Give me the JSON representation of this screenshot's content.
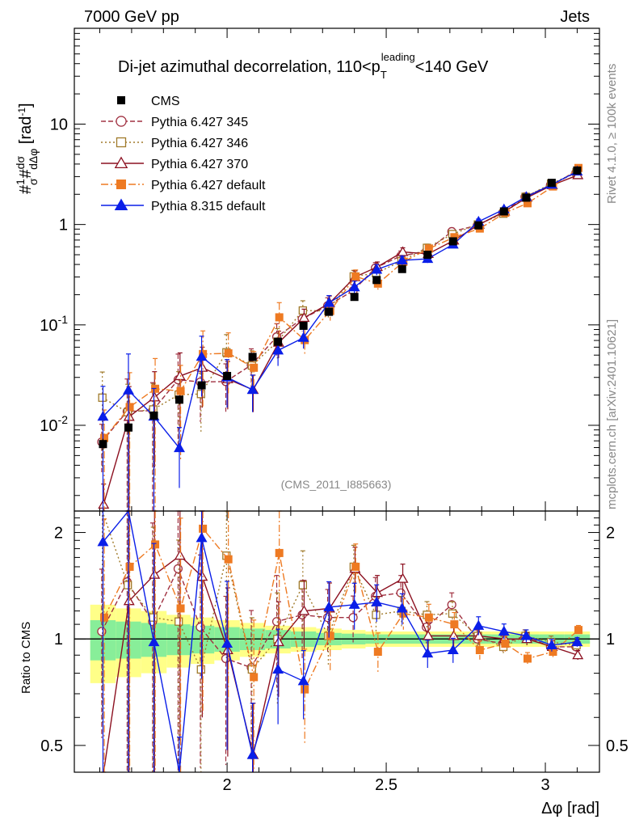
{
  "header": {
    "left": "7000 GeV pp",
    "right": "Jets"
  },
  "side_text": {
    "rivet": "Rivet 4.1.0, ≥ 100k events",
    "mcplots": "mcplots.cern.ch [arXiv:2401.10621]"
  },
  "chart_data": {
    "type": "scatter",
    "title": "Di-jet azimuthal decorrelation, 110<p_T^leading<140 GeV",
    "title_parts": {
      "main": "Di-jet azimuthal decorrelation, 110<p",
      "sup": "leading",
      "sub": "T",
      "end": "<140 GeV"
    },
    "analysis_id": "(CMS_2011_I885663)",
    "xlabel": "Δφ [rad]",
    "ylabel": "1/σ dσ/dΔφ [rad^-1]",
    "ratio_ylabel": "Ratio to CMS",
    "xlim": [
      1.52,
      3.17
    ],
    "ylim": [
      0.0014,
      90
    ],
    "yscale": "log",
    "ratio_ylim": [
      0.42,
      2.3
    ],
    "x_ticks": [
      "2",
      "2.5",
      "3"
    ],
    "y_ticks": [
      "10^-2",
      "10^-1",
      "1",
      "10"
    ],
    "ratio_ticks": [
      "0.5",
      "1",
      "2"
    ],
    "legend_position": "top-left",
    "x": [
      1.61,
      1.69,
      1.77,
      1.85,
      1.92,
      2.0,
      2.08,
      2.16,
      2.24,
      2.32,
      2.4,
      2.47,
      2.55,
      2.63,
      2.71,
      2.79,
      2.87,
      2.94,
      3.02,
      3.1
    ],
    "cms": {
      "name": "CMS",
      "values": [
        0.0065,
        0.0095,
        0.0125,
        0.018,
        0.025,
        0.031,
        0.048,
        0.068,
        0.098,
        0.135,
        0.19,
        0.28,
        0.36,
        0.5,
        0.68,
        0.98,
        1.35,
        1.85,
        2.6,
        3.45
      ],
      "band_outer": [
        0.25,
        0.22,
        0.2,
        0.17,
        0.15,
        0.13,
        0.11,
        0.09,
        0.08,
        0.07,
        0.06,
        0.05,
        0.05,
        0.05,
        0.05,
        0.05,
        0.05,
        0.05,
        0.05,
        0.05
      ],
      "band_inner": [
        0.13,
        0.12,
        0.11,
        0.1,
        0.09,
        0.08,
        0.07,
        0.06,
        0.05,
        0.04,
        0.035,
        0.03,
        0.03,
        0.03,
        0.03,
        0.03,
        0.03,
        0.03,
        0.03,
        0.03
      ]
    },
    "series": [
      {
        "name": "Pythia 6.427 345",
        "color": "#a03040",
        "marker": "circle-open",
        "dash": "6,3",
        "ratios": [
          1.05,
          1.45,
          1.12,
          1.58,
          1.08,
          0.88,
          0.83,
          1.12,
          1.17,
          1.15,
          1.15,
          1.32,
          1.35,
          1.08,
          1.25,
          1.0,
          0.97,
          1.02,
          0.95,
          0.95
        ],
        "errs": [
          0.5,
          1.1,
          0.9,
          0.8,
          0.6,
          0.5,
          0.45,
          0.35,
          0.25,
          0.2,
          0.15,
          0.13,
          0.12,
          0.1,
          0.08,
          0.06,
          0.05,
          0.04,
          0.04,
          0.03
        ]
      },
      {
        "name": "Pythia 6.427 346",
        "color": "#a07a2a",
        "marker": "square-open",
        "dash": "2,3",
        "ratios": [
          2.9,
          1.42,
          1.15,
          1.12,
          0.82,
          1.72,
          0.82,
          1.0,
          1.42,
          1.02,
          1.6,
          1.17,
          1.2,
          1.17,
          1.18,
          1.02,
          0.95,
          1.02,
          0.98,
          0.96
        ],
        "errs": [
          0.8,
          0.9,
          0.8,
          0.7,
          0.6,
          0.5,
          0.4,
          0.35,
          0.25,
          0.18,
          0.15,
          0.12,
          0.1,
          0.09,
          0.08,
          0.06,
          0.05,
          0.04,
          0.04,
          0.03
        ]
      },
      {
        "name": "Pythia 6.427 370",
        "color": "#8c1020",
        "marker": "triangle-open",
        "dash": "",
        "ratios": [
          0.25,
          1.28,
          1.52,
          1.72,
          1.5,
          0.93,
          0.47,
          0.98,
          1.2,
          1.22,
          1.58,
          1.35,
          1.48,
          1.02,
          1.02,
          1.02,
          1.0,
          1.0,
          0.95,
          0.9
        ],
        "errs": [
          0.6,
          1.0,
          0.8,
          0.7,
          0.6,
          0.5,
          0.4,
          0.3,
          0.22,
          0.18,
          0.15,
          0.12,
          0.1,
          0.09,
          0.08,
          0.06,
          0.05,
          0.04,
          0.04,
          0.03
        ]
      },
      {
        "name": "Pythia 6.427 default",
        "color": "#ee7a22",
        "marker": "square-filled",
        "dash": "9,3,2,3",
        "ratios": [
          1.15,
          1.6,
          1.85,
          1.22,
          2.05,
          1.68,
          0.78,
          1.75,
          0.72,
          1.02,
          1.6,
          0.92,
          1.18,
          1.15,
          1.1,
          0.93,
          0.97,
          0.88,
          0.92,
          1.06
        ],
        "errs": [
          0.9,
          1.2,
          1.0,
          0.8,
          0.7,
          0.6,
          0.45,
          0.4,
          0.3,
          0.2,
          0.16,
          0.13,
          0.1,
          0.09,
          0.08,
          0.06,
          0.05,
          0.04,
          0.04,
          0.03
        ]
      },
      {
        "name": "Pythia 8.315 default",
        "color": "#0a1ee8",
        "marker": "triangle-filled",
        "dash": "",
        "ratios": [
          1.88,
          2.35,
          0.98,
          0.33,
          1.93,
          0.97,
          0.47,
          0.82,
          0.76,
          1.23,
          1.25,
          1.27,
          1.22,
          0.91,
          0.93,
          1.09,
          1.05,
          1.02,
          0.96,
          0.98
        ],
        "errs": [
          1.0,
          1.3,
          0.9,
          0.6,
          0.6,
          0.5,
          0.4,
          0.3,
          0.22,
          0.18,
          0.15,
          0.12,
          0.1,
          0.09,
          0.08,
          0.06,
          0.05,
          0.04,
          0.04,
          0.03
        ]
      }
    ]
  }
}
